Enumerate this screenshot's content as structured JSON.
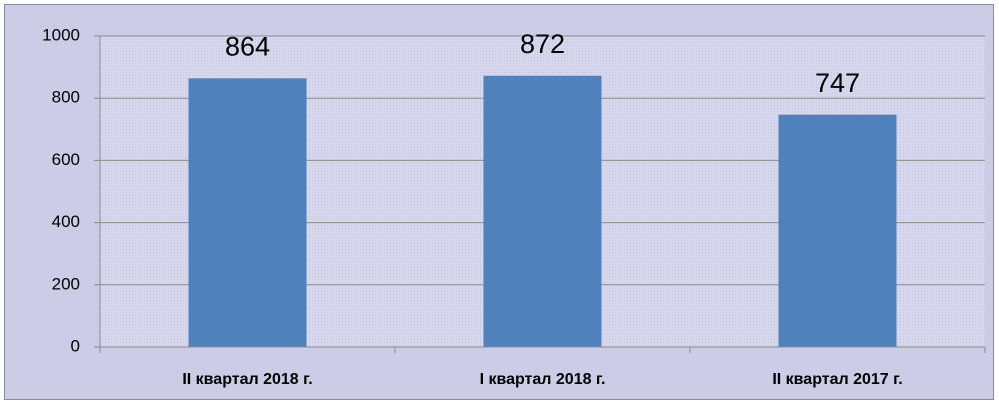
{
  "chart_data": {
    "type": "bar",
    "categories": [
      "II квартал 2018 г.",
      "I квартал 2018 г.",
      "II квартал 2017 г."
    ],
    "values": [
      864,
      872,
      747
    ],
    "color": "#4f81bd",
    "ylim": [
      0,
      1000
    ],
    "yticks": [
      0,
      200,
      400,
      600,
      800,
      1000
    ],
    "grid": true,
    "data_labels": true
  }
}
